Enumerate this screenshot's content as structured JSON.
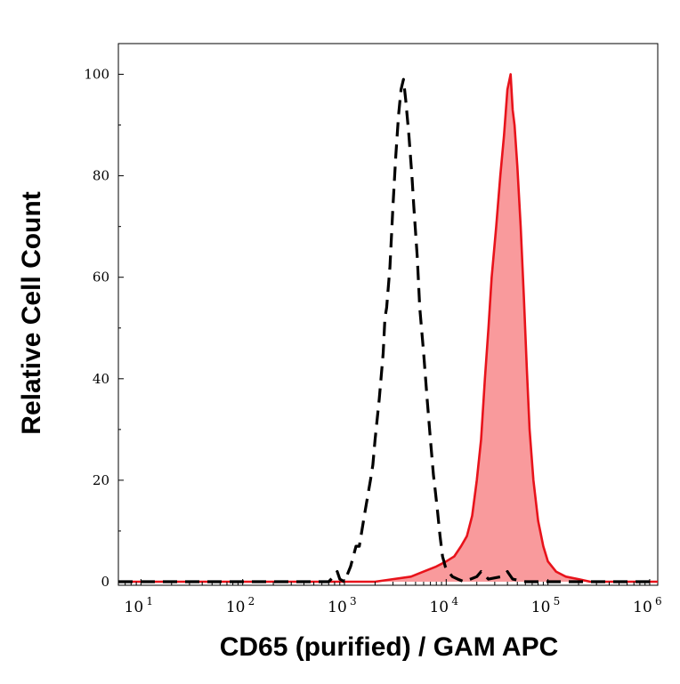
{
  "chart_data": {
    "type": "area",
    "title": "",
    "xlabel": "CD65 (purified) / GAM APC",
    "ylabel": "Relative Cell Count",
    "x_scale": "log",
    "xlim": [
      6,
      1200000
    ],
    "ylim": [
      0,
      105
    ],
    "y_ticks": [
      0,
      20,
      40,
      60,
      80,
      100
    ],
    "y_tick_labels": [
      "0",
      "20",
      "40",
      "60",
      "80",
      "100"
    ],
    "x_ticks": [
      {
        "value": 10,
        "base": "10",
        "exp": "1"
      },
      {
        "value": 100,
        "base": "10",
        "exp": "2"
      },
      {
        "value": 1000,
        "base": "10",
        "exp": "3"
      },
      {
        "value": 10000,
        "base": "10",
        "exp": "4"
      },
      {
        "value": 100000,
        "base": "10",
        "exp": "5"
      },
      {
        "value": 1000000,
        "base": "10",
        "exp": "6"
      }
    ],
    "grid": false,
    "legend": "none",
    "series": [
      {
        "style": "dashed",
        "color": "#000000",
        "fill": "none",
        "points": [
          [
            6,
            0
          ],
          [
            700,
            0
          ],
          [
            780,
            1
          ],
          [
            850,
            2
          ],
          [
            900,
            0.5
          ],
          [
            1000,
            0
          ],
          [
            1150,
            3
          ],
          [
            1300,
            7
          ],
          [
            1400,
            7
          ],
          [
            1600,
            14
          ],
          [
            1800,
            20
          ],
          [
            1900,
            23
          ],
          [
            2000,
            28
          ],
          [
            2200,
            36
          ],
          [
            2400,
            45
          ],
          [
            2500,
            52
          ],
          [
            2600,
            54
          ],
          [
            2800,
            62
          ],
          [
            3000,
            74
          ],
          [
            3200,
            84
          ],
          [
            3400,
            92
          ],
          [
            3600,
            97
          ],
          [
            3800,
            99
          ],
          [
            4000,
            95
          ],
          [
            4300,
            88
          ],
          [
            4600,
            80
          ],
          [
            4800,
            74
          ],
          [
            5200,
            64
          ],
          [
            5500,
            54
          ],
          [
            6000,
            45
          ],
          [
            6500,
            36
          ],
          [
            7000,
            28
          ],
          [
            7500,
            21
          ],
          [
            7800,
            18
          ],
          [
            8200,
            14
          ],
          [
            8700,
            9
          ],
          [
            9200,
            5
          ],
          [
            9800,
            3
          ],
          [
            10500,
            2
          ],
          [
            11500,
            1
          ],
          [
            13000,
            0.5
          ],
          [
            15000,
            0
          ],
          [
            20000,
            1
          ],
          [
            22000,
            2
          ],
          [
            26000,
            0.5
          ],
          [
            35000,
            1
          ],
          [
            40000,
            2
          ],
          [
            45000,
            0.5
          ],
          [
            60000,
            0
          ],
          [
            1200000,
            0
          ]
        ]
      },
      {
        "style": "solid",
        "color": "#e8131b",
        "fill": "#f99a9c",
        "points": [
          [
            6,
            0
          ],
          [
            2000,
            0
          ],
          [
            3000,
            0.5
          ],
          [
            4500,
            1
          ],
          [
            6000,
            2
          ],
          [
            8000,
            3
          ],
          [
            10000,
            4
          ],
          [
            12000,
            5
          ],
          [
            14000,
            7
          ],
          [
            16000,
            9
          ],
          [
            18000,
            13
          ],
          [
            20000,
            20
          ],
          [
            22000,
            28
          ],
          [
            24000,
            40
          ],
          [
            26000,
            50
          ],
          [
            28000,
            60
          ],
          [
            31000,
            70
          ],
          [
            34000,
            80
          ],
          [
            37000,
            88
          ],
          [
            40000,
            97
          ],
          [
            43000,
            100
          ],
          [
            45000,
            93
          ],
          [
            47000,
            90
          ],
          [
            50000,
            82
          ],
          [
            54000,
            70
          ],
          [
            58000,
            56
          ],
          [
            62000,
            42
          ],
          [
            66000,
            30
          ],
          [
            72000,
            20
          ],
          [
            80000,
            12
          ],
          [
            90000,
            7
          ],
          [
            100000,
            4
          ],
          [
            120000,
            2
          ],
          [
            150000,
            1
          ],
          [
            200000,
            0.5
          ],
          [
            260000,
            0
          ],
          [
            1200000,
            0
          ]
        ]
      }
    ]
  }
}
